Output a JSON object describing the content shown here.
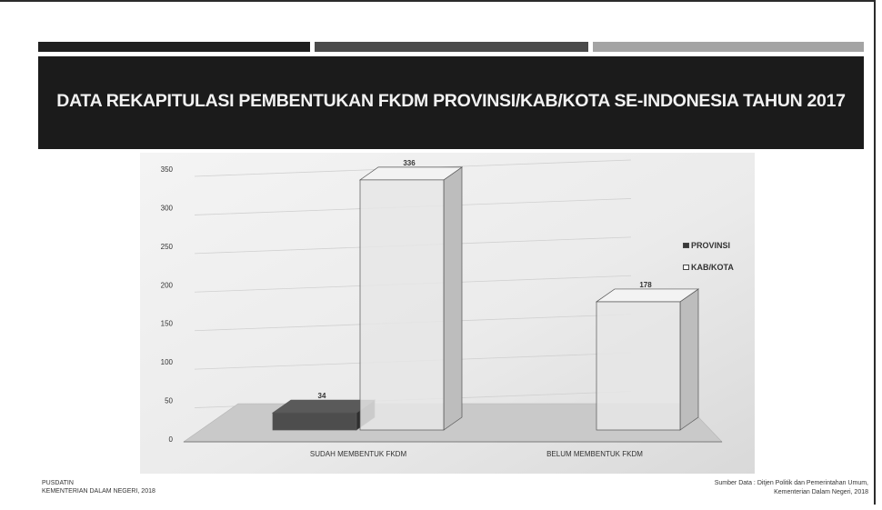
{
  "slide": {
    "title": "DATA REKAPITULASI PEMBENTUKAN FKDM PROVINSI/KAB/KOTA SE-INDONESIA TAHUN 2017",
    "footer_left": [
      "PUSDATIN",
      "KEMENTERIAN DALAM NEGERI, 2018"
    ],
    "footer_right": [
      "Sumber Data : Ditjen Politik dan Pemerintahan Umum,",
      "Kementerian Dalam Negeri, 2018"
    ]
  },
  "chart_data": {
    "type": "bar",
    "categories": [
      "SUDAH MEMBENTUK FKDM",
      "BELUM MEMBENTUK FKDM"
    ],
    "series": [
      {
        "name": "PROVINSI",
        "values": [
          34,
          0
        ],
        "color": "#4d4d4d",
        "labels": [
          "34",
          ""
        ]
      },
      {
        "name": "KAB/KOTA",
        "values": [
          336,
          178
        ],
        "color": "#e6e6e6",
        "labels": [
          "336",
          "178"
        ]
      }
    ],
    "ylim": [
      0,
      350
    ],
    "yticks": [
      0,
      50,
      100,
      150,
      200,
      250,
      300,
      350
    ],
    "legend_position": "right",
    "grid": true,
    "style": "3d-bar"
  }
}
